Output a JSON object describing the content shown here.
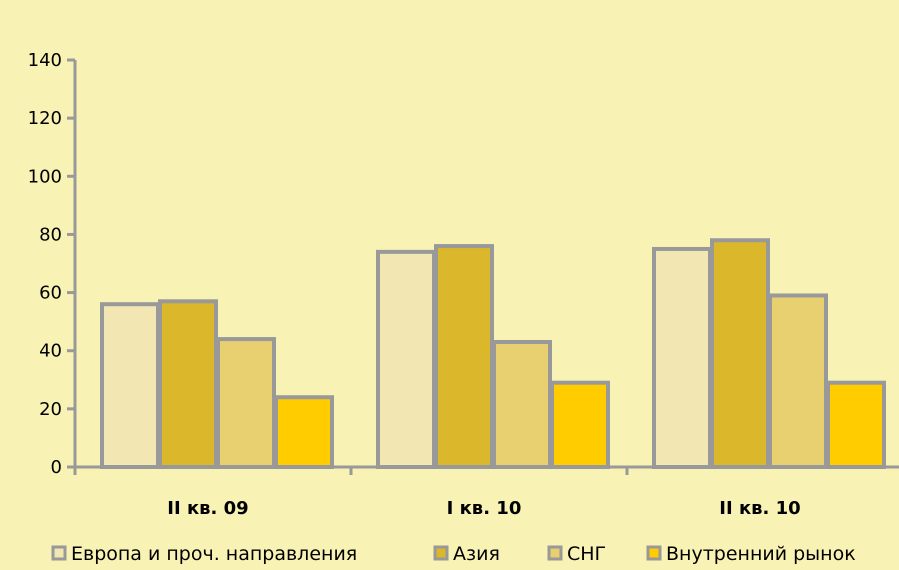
{
  "chart_data": {
    "type": "bar",
    "title": "",
    "xlabel": "",
    "ylabel": "",
    "categories": [
      "II кв. 09",
      "I кв. 10",
      "II кв. 10"
    ],
    "series": [
      {
        "name": "Европа и проч. направления",
        "color": "#f2e6b2",
        "values": [
          56,
          74,
          75
        ]
      },
      {
        "name": "Азия",
        "color": "#dab72b",
        "values": [
          57,
          76,
          78
        ]
      },
      {
        "name": "СНГ",
        "color": "#e8cf70",
        "values": [
          44,
          43,
          59
        ]
      },
      {
        "name": "Внутренний рынок",
        "color": "#ffcc00",
        "values": [
          24,
          29,
          29
        ]
      }
    ],
    "ylim": [
      0,
      140
    ],
    "yticks": [
      0,
      20,
      40,
      60,
      80,
      100,
      120,
      140
    ],
    "grid": false,
    "legend_position": "bottom",
    "colors": {
      "background": "#f8f2b4",
      "axis": "#999999",
      "bar_border": "#999999"
    }
  }
}
